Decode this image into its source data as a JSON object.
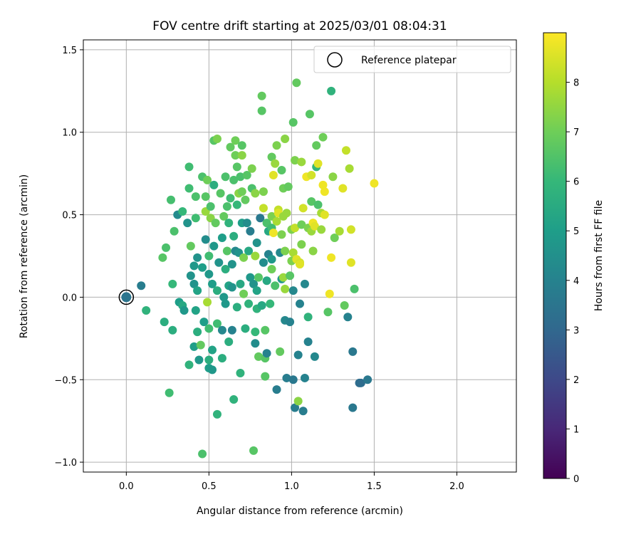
{
  "chart_data": {
    "type": "scatter",
    "title": "FOV centre drift starting at 2025/03/01 08:04:31",
    "xlabel": "Angular distance from reference (arcmin)",
    "ylabel": "Rotation from reference (arcmin)",
    "xlim": [
      -0.26,
      2.36
    ],
    "ylim": [
      -1.06,
      1.56
    ],
    "grid": true,
    "legend": {
      "placement": "top-right",
      "label": "Reference platepar"
    },
    "colorbar": {
      "label": "Hours from first FF file",
      "range": [
        0,
        9
      ],
      "ticks": [
        "0",
        "1",
        "2",
        "3",
        "4",
        "5",
        "6",
        "7",
        "8"
      ],
      "colormap": "viridis"
    },
    "x_ticks": [
      {
        "value": 0.0,
        "label": "0.0"
      },
      {
        "value": 0.5,
        "label": "0.5"
      },
      {
        "value": 1.0,
        "label": "1.0"
      },
      {
        "value": 1.5,
        "label": "1.5"
      },
      {
        "value": 2.0,
        "label": "2.0"
      }
    ],
    "y_ticks": [
      {
        "value": -1.0,
        "label": "−1.0"
      },
      {
        "value": -0.5,
        "label": "−0.5"
      },
      {
        "value": 0.0,
        "label": "0.0"
      },
      {
        "value": 0.5,
        "label": "0.5"
      },
      {
        "value": 1.0,
        "label": "1.0"
      },
      {
        "value": 1.5,
        "label": "1.5"
      }
    ],
    "reference_point": {
      "x": 0.0,
      "y": 0.0,
      "hours": 3.5
    },
    "points": [
      [
        0.09,
        0.07,
        3.8
      ],
      [
        0.12,
        -0.08,
        5.8
      ],
      [
        0.23,
        -0.15,
        5.6
      ],
      [
        0.24,
        0.3,
        6.4
      ],
      [
        0.22,
        0.24,
        6.6
      ],
      [
        0.26,
        -0.58,
        6.2
      ],
      [
        0.27,
        0.59,
        6.3
      ],
      [
        0.28,
        0.08,
        6.0
      ],
      [
        0.28,
        -0.2,
        5.6
      ],
      [
        0.29,
        0.4,
        6.4
      ],
      [
        0.31,
        0.5,
        4.3
      ],
      [
        0.32,
        -0.03,
        5.0
      ],
      [
        0.34,
        -0.05,
        5.4
      ],
      [
        0.34,
        0.52,
        6.0
      ],
      [
        0.35,
        -0.08,
        4.8
      ],
      [
        0.38,
        0.79,
        6.2
      ],
      [
        0.38,
        0.66,
        6.2
      ],
      [
        0.37,
        0.45,
        4.6
      ],
      [
        0.39,
        0.13,
        4.6
      ],
      [
        0.38,
        -0.41,
        5.8
      ],
      [
        0.39,
        0.31,
        6.8
      ],
      [
        0.41,
        -0.3,
        5.0
      ],
      [
        0.41,
        0.19,
        4.8
      ],
      [
        0.41,
        0.08,
        4.6
      ],
      [
        0.42,
        -0.08,
        5.2
      ],
      [
        0.42,
        0.48,
        6.2
      ],
      [
        0.42,
        0.61,
        6.4
      ],
      [
        0.43,
        0.24,
        4.6
      ],
      [
        0.43,
        0.04,
        5.2
      ],
      [
        0.43,
        -0.21,
        5.6
      ],
      [
        0.44,
        -0.38,
        4.8
      ],
      [
        0.45,
        -0.29,
        6.8
      ],
      [
        0.46,
        -0.95,
        6.4
      ],
      [
        0.46,
        0.73,
        6.4
      ],
      [
        0.46,
        0.18,
        5.0
      ],
      [
        0.47,
        -0.15,
        5.0
      ],
      [
        0.48,
        0.35,
        4.4
      ],
      [
        0.48,
        0.61,
        6.6
      ],
      [
        0.48,
        0.52,
        7.6
      ],
      [
        0.49,
        0.71,
        7.0
      ],
      [
        0.49,
        -0.03,
        7.8
      ],
      [
        0.5,
        -0.43,
        5.0
      ],
      [
        0.5,
        -0.38,
        5.6
      ],
      [
        0.5,
        0.14,
        4.8
      ],
      [
        0.5,
        0.25,
        6.2
      ],
      [
        0.5,
        -0.19,
        6.2
      ],
      [
        0.51,
        0.48,
        7.4
      ],
      [
        0.51,
        0.55,
        6.4
      ],
      [
        0.52,
        -0.32,
        5.2
      ],
      [
        0.52,
        0.08,
        5.0
      ],
      [
        0.52,
        -0.44,
        4.8
      ],
      [
        0.53,
        0.68,
        5.6
      ],
      [
        0.53,
        0.31,
        4.8
      ],
      [
        0.53,
        0.95,
        6.6
      ],
      [
        0.54,
        0.45,
        6.8
      ],
      [
        0.55,
        0.96,
        7.2
      ],
      [
        0.55,
        -0.71,
        5.8
      ],
      [
        0.55,
        -0.16,
        6.2
      ],
      [
        0.55,
        0.04,
        5.6
      ],
      [
        0.56,
        0.21,
        4.6
      ],
      [
        0.57,
        0.63,
        6.6
      ],
      [
        0.58,
        -0.2,
        4.2
      ],
      [
        0.58,
        -0.37,
        5.6
      ],
      [
        0.58,
        0.36,
        5.0
      ],
      [
        0.59,
        0.49,
        6.8
      ],
      [
        0.59,
        0.0,
        4.8
      ],
      [
        0.6,
        0.73,
        6.4
      ],
      [
        0.6,
        0.17,
        5.6
      ],
      [
        0.6,
        -0.04,
        4.8
      ],
      [
        0.61,
        0.28,
        6.6
      ],
      [
        0.61,
        0.55,
        6.4
      ],
      [
        0.62,
        -0.27,
        5.6
      ],
      [
        0.62,
        0.45,
        5.8
      ],
      [
        0.62,
        0.07,
        5.2
      ],
      [
        0.63,
        0.91,
        6.8
      ],
      [
        0.63,
        0.6,
        6.2
      ],
      [
        0.64,
        0.2,
        4.6
      ],
      [
        0.64,
        0.06,
        4.6
      ],
      [
        0.64,
        -0.2,
        4.0
      ],
      [
        0.65,
        0.71,
        6.4
      ],
      [
        0.65,
        0.37,
        5.6
      ],
      [
        0.65,
        -0.62,
        5.8
      ],
      [
        0.66,
        0.95,
        7.0
      ],
      [
        0.66,
        0.28,
        4.2
      ],
      [
        0.66,
        0.86,
        7.0
      ],
      [
        0.67,
        -0.06,
        5.6
      ],
      [
        0.67,
        0.56,
        6.0
      ],
      [
        0.67,
        0.79,
        6.6
      ],
      [
        0.68,
        0.63,
        7.4
      ],
      [
        0.68,
        0.27,
        4.6
      ],
      [
        0.69,
        -0.46,
        5.8
      ],
      [
        0.69,
        0.73,
        6.4
      ],
      [
        0.69,
        0.08,
        5.4
      ],
      [
        0.7,
        0.92,
        6.6
      ],
      [
        0.7,
        0.86,
        7.4
      ],
      [
        0.7,
        0.45,
        5.0
      ],
      [
        0.7,
        0.64,
        7.0
      ],
      [
        0.71,
        0.02,
        7.0
      ],
      [
        0.71,
        0.24,
        7.2
      ],
      [
        0.72,
        -0.19,
        5.6
      ],
      [
        0.72,
        0.59,
        6.8
      ],
      [
        0.73,
        0.45,
        4.4
      ],
      [
        0.73,
        0.74,
        6.6
      ],
      [
        0.74,
        -0.04,
        5.8
      ],
      [
        0.74,
        0.28,
        5.4
      ],
      [
        0.75,
        0.12,
        4.8
      ],
      [
        0.75,
        0.4,
        3.8
      ],
      [
        0.76,
        0.66,
        6.4
      ],
      [
        0.76,
        0.78,
        7.2
      ],
      [
        0.77,
        -0.93,
        6.6
      ],
      [
        0.77,
        0.08,
        4.6
      ],
      [
        0.78,
        -0.28,
        4.4
      ],
      [
        0.78,
        -0.21,
        6.0
      ],
      [
        0.78,
        0.63,
        7.4
      ],
      [
        0.78,
        0.25,
        7.6
      ],
      [
        0.79,
        0.04,
        5.2
      ],
      [
        0.79,
        -0.07,
        5.8
      ],
      [
        0.79,
        0.33,
        4.6
      ],
      [
        0.8,
        0.12,
        6.6
      ],
      [
        0.8,
        -0.36,
        6.8
      ],
      [
        0.81,
        0.48,
        3.6
      ],
      [
        0.82,
        -0.05,
        5.4
      ],
      [
        0.82,
        1.22,
        6.8
      ],
      [
        0.82,
        1.13,
        6.6
      ],
      [
        0.83,
        0.54,
        8.2
      ],
      [
        0.83,
        0.64,
        7.2
      ],
      [
        0.83,
        0.21,
        4.4
      ],
      [
        0.84,
        -0.37,
        6.6
      ],
      [
        0.84,
        -0.48,
        6.6
      ],
      [
        0.84,
        -0.2,
        6.6
      ],
      [
        0.85,
        0.45,
        6.4
      ],
      [
        0.85,
        -0.34,
        4.0
      ],
      [
        0.85,
        0.1,
        5.4
      ],
      [
        0.86,
        0.26,
        4.0
      ],
      [
        0.86,
        0.4,
        5.4
      ],
      [
        0.87,
        -0.04,
        6.0
      ],
      [
        0.88,
        0.23,
        4.8
      ],
      [
        0.88,
        0.85,
        6.8
      ],
      [
        0.88,
        0.49,
        7.2
      ],
      [
        0.88,
        0.42,
        6.2
      ],
      [
        0.88,
        0.17,
        7.0
      ],
      [
        0.89,
        0.39,
        8.8
      ],
      [
        0.89,
        0.74,
        8.6
      ],
      [
        0.9,
        0.81,
        7.6
      ],
      [
        0.9,
        0.07,
        6.4
      ],
      [
        0.91,
        -0.56,
        3.8
      ],
      [
        0.91,
        0.92,
        7.2
      ],
      [
        0.91,
        0.46,
        7.8
      ],
      [
        0.92,
        0.53,
        8.2
      ],
      [
        0.92,
        0.51,
        8.6
      ],
      [
        0.93,
        -0.33,
        6.8
      ],
      [
        0.93,
        0.27,
        4.2
      ],
      [
        0.94,
        0.38,
        7.2
      ],
      [
        0.94,
        0.11,
        4.8
      ],
      [
        0.94,
        0.77,
        6.6
      ],
      [
        0.95,
        0.49,
        7.6
      ],
      [
        0.95,
        0.12,
        7.6
      ],
      [
        0.95,
        0.66,
        7.0
      ],
      [
        0.96,
        0.28,
        7.2
      ],
      [
        0.96,
        -0.14,
        4.2
      ],
      [
        0.96,
        0.96,
        7.4
      ],
      [
        0.96,
        0.05,
        7.6
      ],
      [
        0.97,
        0.51,
        7.6
      ],
      [
        0.97,
        -0.49,
        3.8
      ],
      [
        0.98,
        0.67,
        6.8
      ],
      [
        0.99,
        0.13,
        6.6
      ],
      [
        0.99,
        -0.15,
        4.0
      ],
      [
        1.0,
        0.22,
        7.2
      ],
      [
        1.0,
        0.41,
        7.2
      ],
      [
        1.01,
        1.06,
        6.6
      ],
      [
        1.01,
        -0.5,
        3.6
      ],
      [
        1.01,
        0.04,
        4.2
      ],
      [
        1.01,
        0.27,
        7.8
      ],
      [
        1.02,
        0.83,
        7.2
      ],
      [
        1.02,
        -0.67,
        3.8
      ],
      [
        1.02,
        0.42,
        8.2
      ],
      [
        1.03,
        1.3,
        6.8
      ],
      [
        1.03,
        0.23,
        8.6
      ],
      [
        1.04,
        -0.63,
        7.4
      ],
      [
        1.04,
        -0.35,
        4.0
      ],
      [
        1.05,
        0.21,
        8.4
      ],
      [
        1.05,
        -0.04,
        4.0
      ],
      [
        1.05,
        0.2,
        8.6
      ],
      [
        1.06,
        0.32,
        7.2
      ],
      [
        1.06,
        0.44,
        7.0
      ],
      [
        1.06,
        0.82,
        7.6
      ],
      [
        1.07,
        0.54,
        8.4
      ],
      [
        1.07,
        -0.69,
        3.8
      ],
      [
        1.08,
        0.08,
        4.2
      ],
      [
        1.08,
        -0.49,
        4.0
      ],
      [
        1.09,
        0.73,
        8.8
      ],
      [
        1.1,
        -0.27,
        4.0
      ],
      [
        1.1,
        0.42,
        7.2
      ],
      [
        1.1,
        -0.12,
        5.8
      ],
      [
        1.11,
        1.11,
        6.6
      ],
      [
        1.12,
        0.58,
        6.6
      ],
      [
        1.12,
        0.74,
        8.4
      ],
      [
        1.12,
        0.4,
        7.6
      ],
      [
        1.13,
        0.45,
        8.8
      ],
      [
        1.13,
        0.28,
        7.4
      ],
      [
        1.14,
        -0.36,
        4.2
      ],
      [
        1.14,
        0.43,
        8.6
      ],
      [
        1.15,
        0.79,
        6.0
      ],
      [
        1.15,
        0.92,
        6.8
      ],
      [
        1.16,
        0.56,
        6.4
      ],
      [
        1.16,
        0.81,
        8.6
      ],
      [
        1.18,
        0.51,
        7.8
      ],
      [
        1.18,
        0.41,
        7.6
      ],
      [
        1.19,
        0.68,
        8.8
      ],
      [
        1.19,
        0.97,
        7.0
      ],
      [
        1.2,
        0.64,
        8.8
      ],
      [
        1.2,
        0.5,
        8.6
      ],
      [
        1.22,
        -0.09,
        6.6
      ],
      [
        1.23,
        0.02,
        8.8
      ],
      [
        1.24,
        1.25,
        5.8
      ],
      [
        1.24,
        0.24,
        8.8
      ],
      [
        1.25,
        0.73,
        7.4
      ],
      [
        1.26,
        0.36,
        7.0
      ],
      [
        1.29,
        0.4,
        7.8
      ],
      [
        1.31,
        0.66,
        8.6
      ],
      [
        1.32,
        -0.05,
        6.8
      ],
      [
        1.33,
        0.89,
        8.2
      ],
      [
        1.34,
        -0.12,
        4.0
      ],
      [
        1.35,
        0.78,
        7.8
      ],
      [
        1.36,
        0.21,
        8.6
      ],
      [
        1.36,
        0.41,
        8.4
      ],
      [
        1.37,
        -0.33,
        3.6
      ],
      [
        1.37,
        -0.67,
        3.6
      ],
      [
        1.38,
        0.05,
        6.4
      ],
      [
        1.41,
        -0.52,
        3.2
      ],
      [
        1.42,
        -0.52,
        3.2
      ],
      [
        1.46,
        -0.5,
        3.6
      ],
      [
        1.5,
        0.69,
        8.8
      ]
    ]
  }
}
